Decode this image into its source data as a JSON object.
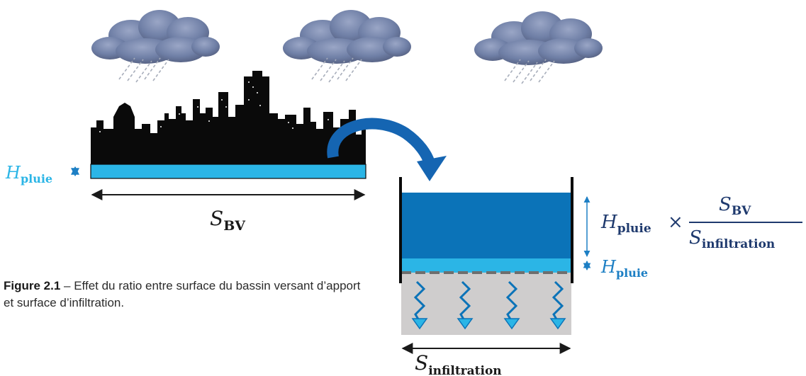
{
  "labels": {
    "h_pluie_base": "H",
    "h_pluie_sub": "pluie",
    "s_bv_base": "S",
    "s_bv_sub": "BV",
    "s_infiltration_base": "S",
    "s_infiltration_sub": "infiltration",
    "times_sign": "×"
  },
  "caption": {
    "number": "Figure 2.1",
    "text": " – Effet du ratio entre surface du bassin versant d’apport et surface d’infiltration."
  },
  "icons": {
    "clouds": "rain-cloud-icon",
    "city": "city-skyline",
    "flow_arrow": "curved-arrow-icon",
    "infiltration_arrows": "zigzag-arrow-down-icon"
  },
  "colors": {
    "light_water": "#2bb5e6",
    "deep_water": "#0b73b8",
    "label_blue": "#1d7fc4",
    "label_dark": "#1f3a6e",
    "soil": "#cfcdcd",
    "skyline": "#0a0a0a",
    "cloud": "#6f7fa6"
  }
}
